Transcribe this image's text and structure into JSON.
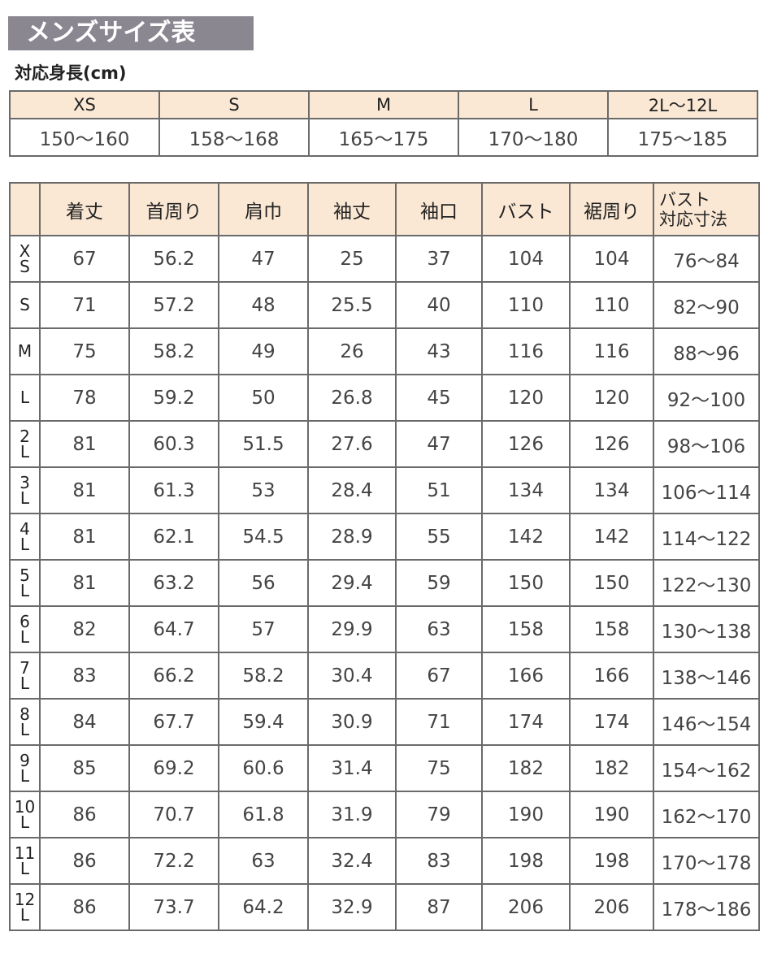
{
  "title": "メンズサイズ表",
  "subtitle": "対応身長(cm)",
  "heights": {
    "sizes": [
      "XS",
      "S",
      "M",
      "L",
      "2L〜12L"
    ],
    "ranges": [
      "150〜160",
      "158〜168",
      "165〜175",
      "170〜180",
      "175〜185"
    ]
  },
  "measurements": {
    "headers": [
      "",
      "着丈",
      "首周り",
      "肩巾",
      "袖丈",
      "袖口",
      "バスト",
      "裾周り",
      "バスト\n対応寸法"
    ],
    "rows": [
      {
        "size": [
          "X",
          "S"
        ],
        "values": [
          "67",
          "56.2",
          "47",
          "25",
          "37",
          "104",
          "104",
          "76〜84"
        ]
      },
      {
        "size": [
          "S"
        ],
        "values": [
          "71",
          "57.2",
          "48",
          "25.5",
          "40",
          "110",
          "110",
          "82〜90"
        ]
      },
      {
        "size": [
          "M"
        ],
        "values": [
          "75",
          "58.2",
          "49",
          "26",
          "43",
          "116",
          "116",
          "88〜96"
        ]
      },
      {
        "size": [
          "L"
        ],
        "values": [
          "78",
          "59.2",
          "50",
          "26.8",
          "45",
          "120",
          "120",
          "92〜100"
        ]
      },
      {
        "size": [
          "2",
          "L"
        ],
        "values": [
          "81",
          "60.3",
          "51.5",
          "27.6",
          "47",
          "126",
          "126",
          "98〜106"
        ]
      },
      {
        "size": [
          "3",
          "L"
        ],
        "values": [
          "81",
          "61.3",
          "53",
          "28.4",
          "51",
          "134",
          "134",
          "106〜114"
        ]
      },
      {
        "size": [
          "4",
          "L"
        ],
        "values": [
          "81",
          "62.1",
          "54.5",
          "28.9",
          "55",
          "142",
          "142",
          "114〜122"
        ]
      },
      {
        "size": [
          "5",
          "L"
        ],
        "values": [
          "81",
          "63.2",
          "56",
          "29.4",
          "59",
          "150",
          "150",
          "122〜130"
        ]
      },
      {
        "size": [
          "6",
          "L"
        ],
        "values": [
          "82",
          "64.7",
          "57",
          "29.9",
          "63",
          "158",
          "158",
          "130〜138"
        ]
      },
      {
        "size": [
          "7",
          "L"
        ],
        "values": [
          "83",
          "66.2",
          "58.2",
          "30.4",
          "67",
          "166",
          "166",
          "138〜146"
        ]
      },
      {
        "size": [
          "8",
          "L"
        ],
        "values": [
          "84",
          "67.7",
          "59.4",
          "30.9",
          "71",
          "174",
          "174",
          "146〜154"
        ]
      },
      {
        "size": [
          "9",
          "L"
        ],
        "values": [
          "85",
          "69.2",
          "60.6",
          "31.4",
          "75",
          "182",
          "182",
          "154〜162"
        ]
      },
      {
        "size": [
          "10",
          "L"
        ],
        "values": [
          "86",
          "70.7",
          "61.8",
          "31.9",
          "79",
          "190",
          "190",
          "162〜170"
        ]
      },
      {
        "size": [
          "11",
          "L"
        ],
        "values": [
          "86",
          "72.2",
          "63",
          "32.4",
          "83",
          "198",
          "198",
          "170〜178"
        ]
      },
      {
        "size": [
          "12",
          "L"
        ],
        "values": [
          "86",
          "73.7",
          "64.2",
          "32.9",
          "87",
          "206",
          "206",
          "178〜186"
        ]
      }
    ]
  }
}
